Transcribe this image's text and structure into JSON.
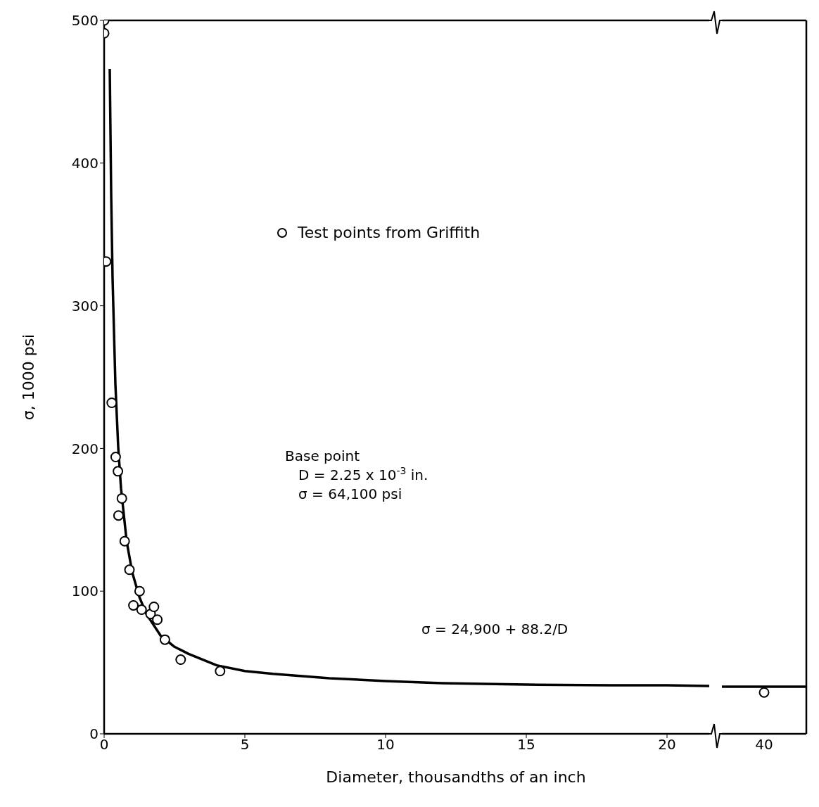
{
  "chart_data": [
    {
      "type": "scatter",
      "xlabel": "Diameter, thousandths of an inch",
      "ylabel": "σ, 1000 psi",
      "xlim": [
        0,
        21.5
      ],
      "xticks": [
        0,
        5,
        10,
        15,
        20
      ],
      "ylim": [
        0,
        500
      ],
      "yticks": [
        0,
        100,
        200,
        300,
        400,
        500
      ],
      "grid": false,
      "legend": "top",
      "series": [
        {
          "name": "Test points from Griffith",
          "marker": "circle",
          "color": "#000000",
          "x": [
            0,
            0,
            0.07,
            0.27,
            0.41,
            0.49,
            0.63,
            0.51,
            0.73,
            0.9,
            1.26,
            1.04,
            1.33,
            1.65,
            1.77,
            1.89,
            2.16,
            2.72,
            4.12
          ],
          "values": [
            500,
            491,
            331,
            232,
            194,
            184,
            165,
            153,
            135,
            115,
            100,
            90,
            87,
            84,
            89,
            80,
            66,
            52,
            44
          ]
        },
        {
          "type": "line",
          "color": "#000000",
          "x": [
            0.2,
            0.25,
            0.3,
            0.4,
            0.5,
            0.6,
            0.8,
            1,
            1.25,
            1.5,
            2,
            2.5,
            3,
            4,
            5,
            6,
            8,
            10,
            12,
            15,
            18,
            20,
            21.5
          ],
          "values": [
            466,
            378,
            319,
            245,
            201,
            172,
            135,
            113,
            96,
            84,
            69,
            61,
            56,
            48,
            44,
            42,
            39,
            37,
            35.5,
            34.5,
            34,
            34,
            33.5
          ]
        }
      ],
      "annotations": [
        "Base point\n   D = 2.25 x 10$^{-3}$ in.\n   σ = 64,100 psi",
        "σ = 24,900 + 88.2/D"
      ]
    },
    {
      "type": "scatter",
      "categories": [
        "40"
      ],
      "ylim": [
        0,
        500
      ],
      "yticks": [
        0,
        100,
        200,
        300,
        400,
        500
      ],
      "tick_labels": "x",
      "grid": false,
      "series": [
        {
          "marker": "circle",
          "color": "#000000",
          "values": [
            29
          ]
        }
      ],
      "ref_lines": [
        {
          "axis": "y",
          "value": 33,
          "color": "#000000"
        }
      ]
    }
  ]
}
